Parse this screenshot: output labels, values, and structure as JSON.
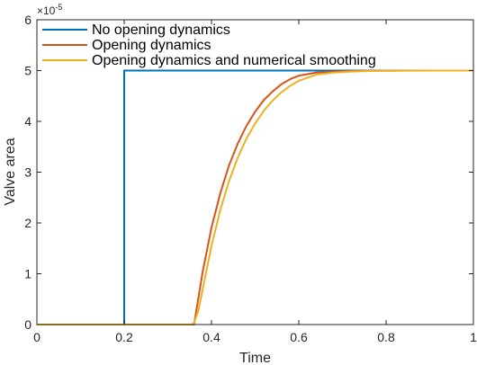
{
  "chart_data": {
    "type": "line",
    "xlabel": "Time",
    "ylabel": "Valve area",
    "xlim": [
      0,
      1
    ],
    "ylim": [
      0,
      6
    ],
    "y_multiplier": "×10",
    "y_multiplier_exp": "-5",
    "xticks": [
      "0",
      "0.2",
      "0.4",
      "0.6",
      "0.8",
      "1"
    ],
    "yticks": [
      "0",
      "1",
      "2",
      "3",
      "4",
      "5",
      "6"
    ],
    "legend_position": "top-left",
    "series": [
      {
        "name": "No opening dynamics",
        "color": "#0072BD",
        "x": [
          0,
          0.2,
          0.2,
          1
        ],
        "y": [
          0,
          0,
          5,
          5
        ]
      },
      {
        "name": "Opening dynamics",
        "color": "#D95319",
        "x": [
          0,
          0.36,
          0.38,
          0.4,
          0.42,
          0.44,
          0.46,
          0.48,
          0.5,
          0.52,
          0.54,
          0.56,
          0.58,
          0.6,
          0.64,
          0.68,
          0.72,
          0.76,
          0.8,
          0.85,
          0.9,
          0.95,
          1.0
        ],
        "y": [
          0,
          0,
          1.05,
          1.91,
          2.58,
          3.13,
          3.56,
          3.91,
          4.19,
          4.42,
          4.59,
          4.73,
          4.83,
          4.9,
          4.96,
          4.98,
          4.99,
          4.995,
          4.998,
          5.0,
          5.0,
          5.0,
          5.0
        ]
      },
      {
        "name": "Opening dynamics and numerical smoothing",
        "color": "#EDB120",
        "x": [
          0,
          0.355,
          0.36,
          0.37,
          0.38,
          0.4,
          0.42,
          0.44,
          0.46,
          0.48,
          0.5,
          0.52,
          0.54,
          0.56,
          0.58,
          0.6,
          0.64,
          0.68,
          0.72,
          0.76,
          0.8,
          0.85,
          0.9,
          0.95,
          1.0
        ],
        "y": [
          0,
          0,
          0.03,
          0.28,
          0.7,
          1.55,
          2.25,
          2.82,
          3.28,
          3.66,
          3.96,
          4.21,
          4.41,
          4.57,
          4.7,
          4.8,
          4.92,
          4.96,
          4.98,
          4.99,
          4.995,
          4.998,
          5.0,
          5.0,
          5.0
        ]
      }
    ]
  }
}
